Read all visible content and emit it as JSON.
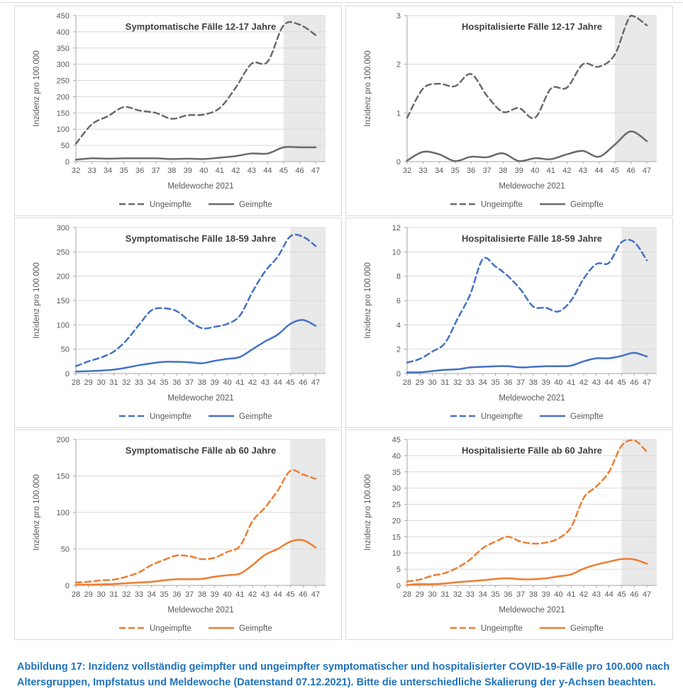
{
  "page": {
    "caption": "Abbildung 17: Inzidenz vollständig geimpfter und ungeimpfter symptomatischer und hospitalisierter COVID-19-Fälle pro 100.000 nach Altersgruppen, Impfstatus und Meldewoche (Datenstand 07.12.2021). Bitte die unterschiedliche Skalierung der y-Achsen beachten."
  },
  "legend": {
    "ungeimpfte": "Ungeimpfte",
    "geimpfte": "Geimpfte"
  },
  "colors": {
    "gray_series": "#6a6a6a",
    "blue_series": "#4472c4",
    "orange_series": "#ed7d31",
    "band": "#e9e9e9",
    "gridline": "#d9d9d9",
    "axis": "#a6a6a6",
    "axis_text": "#595959",
    "title_text": "#3f3f3f",
    "caption_blue": "#2173bc",
    "panel_border": "#d9d9d9"
  },
  "chart_data": [
    {
      "type": "line",
      "title": "Symptomatische Fälle 12-17 Jahre",
      "xlabel": "Meldewoche 2021",
      "ylabel": "Inzidenz pro 100.000",
      "color": "#6a6a6a",
      "ylim": [
        0,
        450
      ],
      "ytick_step": 50,
      "shaded_from_week": 45,
      "grid": true,
      "legend_position": "bottom",
      "x": [
        32,
        33,
        34,
        35,
        36,
        37,
        38,
        39,
        40,
        41,
        42,
        43,
        44,
        45,
        46,
        47
      ],
      "series": [
        {
          "name": "Ungeimpfte",
          "style": "dashed",
          "values": [
            55,
            115,
            140,
            168,
            157,
            150,
            132,
            143,
            145,
            165,
            228,
            302,
            308,
            420,
            422,
            390
          ]
        },
        {
          "name": "Geimpfte",
          "style": "solid",
          "values": [
            6,
            10,
            9,
            10,
            10,
            10,
            8,
            9,
            8,
            12,
            17,
            25,
            25,
            44,
            44,
            44
          ]
        }
      ]
    },
    {
      "type": "line",
      "title": "Hospitalisierte Fälle 12-17 Jahre",
      "xlabel": "Meldewoche 2021",
      "ylabel": "Inzidenz pro 100.000",
      "color": "#6a6a6a",
      "ylim": [
        0,
        3
      ],
      "ytick_step": 1,
      "shaded_from_week": 45,
      "grid": true,
      "legend_position": "bottom",
      "x": [
        32,
        33,
        34,
        35,
        36,
        37,
        38,
        39,
        40,
        41,
        42,
        43,
        44,
        45,
        46,
        47
      ],
      "series": [
        {
          "name": "Ungeimpfte",
          "style": "dashed",
          "values": [
            0.9,
            1.5,
            1.6,
            1.55,
            1.8,
            1.35,
            1.02,
            1.1,
            0.9,
            1.5,
            1.52,
            2.0,
            1.95,
            2.2,
            3.0,
            2.8
          ]
        },
        {
          "name": "Geimpfte",
          "style": "solid",
          "values": [
            0.02,
            0.2,
            0.15,
            0.01,
            0.1,
            0.09,
            0.17,
            0.01,
            0.07,
            0.05,
            0.15,
            0.22,
            0.1,
            0.35,
            0.62,
            0.42
          ]
        }
      ]
    },
    {
      "type": "line",
      "title": "Symptomatische Fälle 18-59 Jahre",
      "xlabel": "Meldewoche 2021",
      "ylabel": "Inzidenz pro 100.000",
      "color": "#4472c4",
      "ylim": [
        0,
        300
      ],
      "ytick_step": 50,
      "shaded_from_week": 45,
      "grid": true,
      "legend_position": "bottom",
      "x": [
        28,
        29,
        30,
        31,
        32,
        33,
        34,
        35,
        36,
        37,
        38,
        39,
        40,
        41,
        42,
        43,
        44,
        45,
        46,
        47
      ],
      "series": [
        {
          "name": "Ungeimpfte",
          "style": "dashed",
          "values": [
            15,
            25,
            33,
            45,
            68,
            100,
            130,
            134,
            128,
            108,
            93,
            96,
            102,
            119,
            168,
            210,
            240,
            282,
            281,
            262
          ]
        },
        {
          "name": "Geimpfte",
          "style": "solid",
          "values": [
            4,
            5,
            6,
            8,
            12,
            17,
            21,
            24,
            24,
            23,
            21,
            26,
            30,
            34,
            50,
            66,
            80,
            102,
            110,
            98
          ]
        }
      ]
    },
    {
      "type": "line",
      "title": "Hospitalisierte Fälle 18-59 Jahre",
      "xlabel": "Meldewoche 2021",
      "ylabel": "Inzidenz pro 100.000",
      "color": "#4472c4",
      "ylim": [
        0,
        12
      ],
      "ytick_step": 2,
      "shaded_from_week": 45,
      "grid": true,
      "legend_position": "bottom",
      "x": [
        28,
        29,
        30,
        31,
        32,
        33,
        34,
        35,
        36,
        37,
        38,
        39,
        40,
        41,
        42,
        43,
        44,
        45,
        46,
        47
      ],
      "series": [
        {
          "name": "Ungeimpfte",
          "style": "dashed",
          "values": [
            0.9,
            1.2,
            1.8,
            2.5,
            4.5,
            6.5,
            9.4,
            8.8,
            8.0,
            6.9,
            5.5,
            5.4,
            5.1,
            6.0,
            7.8,
            9.0,
            9.1,
            10.8,
            10.8,
            9.3
          ]
        },
        {
          "name": "Geimpfte",
          "style": "solid",
          "values": [
            0.1,
            0.1,
            0.2,
            0.3,
            0.35,
            0.5,
            0.55,
            0.6,
            0.6,
            0.5,
            0.55,
            0.6,
            0.6,
            0.65,
            1.0,
            1.25,
            1.25,
            1.45,
            1.7,
            1.4
          ]
        }
      ]
    },
    {
      "type": "line",
      "title": "Symptomatische Fälle ab 60 Jahre",
      "xlabel": "Meldewoche 2021",
      "ylabel": "Inzidenz pro 100.000",
      "color": "#ed7d31",
      "ylim": [
        0,
        200
      ],
      "ytick_step": 50,
      "shaded_from_week": 45,
      "grid": true,
      "legend_position": "bottom",
      "x": [
        28,
        29,
        30,
        31,
        32,
        33,
        34,
        35,
        36,
        37,
        38,
        39,
        40,
        41,
        42,
        43,
        44,
        45,
        46,
        47
      ],
      "series": [
        {
          "name": "Ungeimpfte",
          "style": "dashed",
          "values": [
            4,
            5,
            7,
            8,
            12,
            18,
            28,
            35,
            41,
            40,
            36,
            38,
            46,
            54,
            88,
            107,
            130,
            157,
            152,
            146
          ]
        },
        {
          "name": "Geimpfte",
          "style": "solid",
          "values": [
            1,
            1,
            1.5,
            2,
            3,
            4,
            5,
            7,
            8.5,
            8.5,
            9,
            12,
            14,
            16,
            28,
            42,
            50,
            60,
            62,
            52
          ]
        }
      ]
    },
    {
      "type": "line",
      "title": "Hospitalisierte Fälle ab 60 Jahre",
      "xlabel": "Meldewoche 2021",
      "ylabel": "Inzidenz pro 100.000",
      "color": "#ed7d31",
      "ylim": [
        0,
        45
      ],
      "ytick_step": 5,
      "shaded_from_week": 45,
      "grid": true,
      "legend_position": "bottom",
      "x": [
        28,
        29,
        30,
        31,
        32,
        33,
        34,
        35,
        36,
        37,
        38,
        39,
        40,
        41,
        42,
        43,
        44,
        45,
        46,
        47
      ],
      "series": [
        {
          "name": "Ungeimpfte",
          "style": "dashed",
          "values": [
            1.2,
            1.8,
            3.0,
            3.8,
            5.5,
            8.0,
            11.5,
            13.5,
            15.0,
            13.5,
            12.9,
            13.2,
            14.5,
            18.0,
            27.0,
            30.5,
            35.0,
            43.0,
            44.7,
            41.2
          ]
        },
        {
          "name": "Geimpfte",
          "style": "solid",
          "values": [
            0.2,
            0.4,
            0.4,
            0.6,
            1.0,
            1.3,
            1.6,
            2.0,
            2.2,
            1.9,
            1.9,
            2.2,
            2.8,
            3.4,
            5.2,
            6.4,
            7.3,
            8.1,
            8.0,
            6.7
          ]
        }
      ]
    }
  ]
}
